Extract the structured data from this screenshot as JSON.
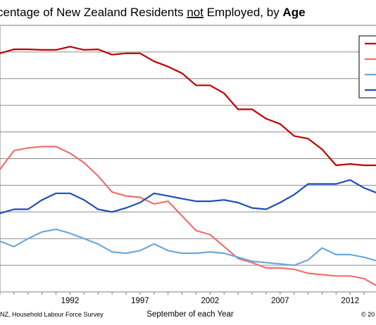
{
  "chart_data": {
    "type": "line",
    "title_parts": {
      "pre": "centage of New Zealand Residents ",
      "underlined": "not",
      "mid": " Employed, by ",
      "bold": "Age"
    },
    "xlabel": "September of each Year",
    "source": "NZ, Household Labour Force Survey",
    "copyright": "© 20",
    "x_ticks": [
      "1992",
      "1997",
      "2002",
      "2007",
      "2012"
    ],
    "x_range": [
      1987,
      2014
    ],
    "ylim": [
      0,
      100
    ],
    "y_grid_steps": 10,
    "grid": true,
    "legend_position": "top-right",
    "x": [
      1987,
      1988,
      1989,
      1990,
      1991,
      1992,
      1993,
      1994,
      1995,
      1996,
      1997,
      1998,
      1999,
      2000,
      2001,
      2002,
      2003,
      2004,
      2005,
      2006,
      2007,
      2008,
      2009,
      2010,
      2011,
      2012,
      2013,
      2014
    ],
    "series": [
      {
        "color": "#c00000",
        "values": [
          89.5,
          91,
          91,
          90.8,
          90.8,
          92,
          90.8,
          91,
          89,
          89.5,
          89.5,
          86.5,
          84.5,
          82,
          77.5,
          77.5,
          74.5,
          68.5,
          68.5,
          65,
          63,
          58.5,
          57.5,
          53.5,
          47.5,
          48,
          47.5,
          47.5
        ]
      },
      {
        "color": "#f07070",
        "values": [
          46,
          53,
          54,
          54.5,
          54.5,
          52,
          48.5,
          43.5,
          37.5,
          36,
          35.5,
          33,
          34,
          28.5,
          23,
          21.5,
          17,
          12.5,
          11,
          9,
          9,
          8.5,
          7,
          6.5,
          6,
          6,
          5,
          2
        ]
      },
      {
        "color": "#6ea8d8",
        "values": [
          19,
          17,
          20,
          22.5,
          23.5,
          22,
          20,
          18,
          15,
          14.5,
          15.5,
          18,
          15.5,
          14.5,
          14.5,
          15,
          14.5,
          13,
          11.5,
          11,
          10.5,
          10,
          12,
          16.5,
          14,
          14,
          13,
          11.5
        ]
      },
      {
        "color": "#1f4eb4",
        "values": [
          29.5,
          31,
          31,
          34.5,
          37,
          37,
          34.5,
          31,
          30,
          31.5,
          33.5,
          37,
          36,
          35,
          34,
          34,
          34.5,
          33.5,
          31.5,
          31,
          33.5,
          36.5,
          40.5,
          40.5,
          40.5,
          42,
          39,
          37
        ]
      }
    ]
  }
}
